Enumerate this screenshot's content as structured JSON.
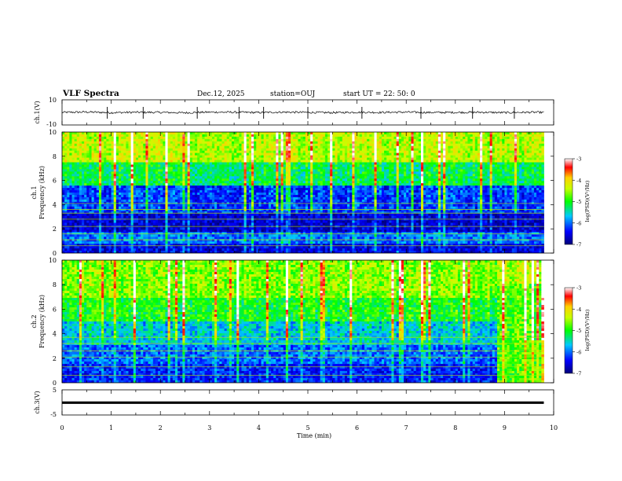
{
  "header": {
    "title": "VLF Spectra",
    "date": "Dec.12, 2025",
    "station": "station=OUJ",
    "start": "start UT =  22: 50: 0"
  },
  "panels": {
    "ch1": {
      "ylabel": "ch.1(V)",
      "yticks": [
        "10",
        "-10"
      ]
    },
    "spec1": {
      "ylabel_line1": "ch.1",
      "ylabel_line2": "Frequency (kHz)",
      "yticks": [
        "0",
        "2",
        "4",
        "6",
        "8",
        "10"
      ]
    },
    "spec2": {
      "ylabel_line1": "ch.2",
      "ylabel_line2": "Frequency (kHz)",
      "yticks": [
        "0",
        "2",
        "4",
        "6",
        "8",
        "10"
      ]
    },
    "ch3": {
      "ylabel": "ch.3(V)",
      "yticks": [
        "5",
        "-5"
      ]
    }
  },
  "xaxis": {
    "label": "Time (min)",
    "ticks": [
      "0",
      "1",
      "2",
      "3",
      "4",
      "5",
      "6",
      "7",
      "8",
      "9",
      "10"
    ]
  },
  "colorbar": {
    "label": "log(PSD)(V²/Hz)",
    "ticks": [
      "-3",
      "-4",
      "-5",
      "-6",
      "-7"
    ]
  },
  "chart_data": [
    {
      "type": "line",
      "panel": "ch.1 waveform",
      "ylabel": "ch.1(V)",
      "xlabel": "Time (min)",
      "xlim": [
        0,
        10
      ],
      "ylim": [
        -10,
        10
      ],
      "yticks": [
        10,
        -10
      ],
      "x": [
        0.0,
        0.5,
        1.0,
        1.5,
        2.0,
        2.5,
        3.0,
        3.5,
        4.0,
        4.5,
        5.0,
        5.5,
        6.0,
        6.5,
        7.0,
        7.5,
        8.0,
        8.5,
        9.0,
        9.5,
        9.8
      ],
      "values": [
        0,
        0.3,
        -0.2,
        0.1,
        0,
        -0.3,
        0.2,
        0.1,
        -0.1,
        0.2,
        0,
        -0.2,
        0.1,
        0,
        0.2,
        -0.1,
        0,
        0.1,
        -0.2,
        0.1,
        0
      ],
      "spikes_min": [
        0.92,
        1.65,
        2.75,
        3.6,
        4.1,
        5.0,
        6.1,
        7.3,
        8.35,
        9.2
      ]
    },
    {
      "type": "heatmap",
      "panel": "ch.1 spectrogram",
      "ylabel": "Frequency (kHz)",
      "xlabel": "Time (min)",
      "xlim": [
        0,
        10
      ],
      "ylim": [
        0,
        10
      ],
      "data_extent_x": [
        0,
        9.8
      ],
      "colorbar_label": "log(PSD)(V²/Hz)",
      "zlim": [
        -7,
        -3
      ],
      "mean_log_psd_by_band": [
        {
          "freq_khz": [
            0,
            0.7
          ],
          "log_psd": -6.5
        },
        {
          "freq_khz": [
            0.7,
            1.8
          ],
          "log_psd": -6.0
        },
        {
          "freq_khz": [
            1.8,
            3.2
          ],
          "log_psd": -6.6
        },
        {
          "freq_khz": [
            3.2,
            5.5
          ],
          "log_psd": -6.2
        },
        {
          "freq_khz": [
            5.5,
            7.5
          ],
          "log_psd": -5.2
        },
        {
          "freq_khz": [
            7.5,
            10
          ],
          "log_psd": -4.4
        }
      ],
      "horizontal_lines_khz": [
        0.6,
        1.1,
        1.6,
        2.2,
        2.8,
        3.3,
        3.6,
        4.1
      ]
    },
    {
      "type": "heatmap",
      "panel": "ch.2 spectrogram",
      "ylabel": "Frequency (kHz)",
      "xlabel": "Time (min)",
      "xlim": [
        0,
        10
      ],
      "ylim": [
        0,
        10
      ],
      "data_extent_x": [
        0,
        9.8
      ],
      "colorbar_label": "log(PSD)(V²/Hz)",
      "zlim": [
        -7,
        -3
      ],
      "mean_log_psd_by_band": [
        {
          "freq_khz": [
            0,
            1.5
          ],
          "log_psd": -6.3
        },
        {
          "freq_khz": [
            1.5,
            3.0
          ],
          "log_psd": -6.0
        },
        {
          "freq_khz": [
            3.0,
            5.0
          ],
          "log_psd": -5.6
        },
        {
          "freq_khz": [
            5.0,
            7.0
          ],
          "log_psd": -5.0
        },
        {
          "freq_khz": [
            7.0,
            10
          ],
          "log_psd": -4.6
        }
      ],
      "late_interval_min": [
        8.85,
        9.8
      ],
      "late_interval_log_psd": -4.8,
      "horizontal_lines_khz": [
        0.6,
        1.3,
        2.1,
        2.6,
        3.2,
        3.7
      ]
    },
    {
      "type": "line",
      "panel": "ch.3 waveform",
      "ylabel": "ch.3(V)",
      "xlabel": "Time (min)",
      "xlim": [
        0,
        10
      ],
      "ylim": [
        -5,
        5
      ],
      "yticks": [
        5,
        -5
      ],
      "x": [
        0,
        9.8
      ],
      "values": [
        -0.2,
        -0.2
      ]
    }
  ]
}
